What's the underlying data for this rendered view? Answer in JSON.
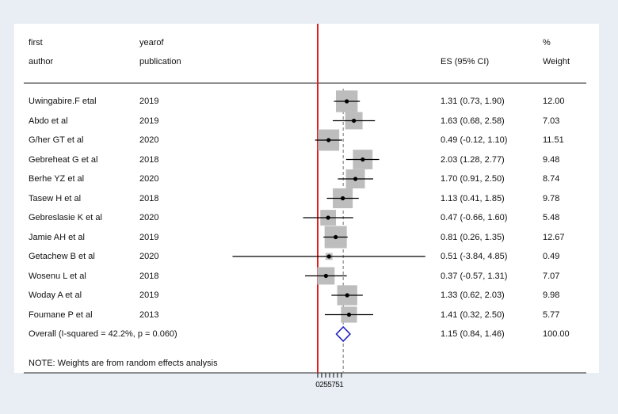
{
  "headers": {
    "author_line1": "first",
    "author_line2": "author",
    "year_line1": "yearof",
    "year_line2": "publication",
    "es": "ES (95% CI)",
    "weight_line1": "%",
    "weight_line2": "Weight"
  },
  "note": "NOTE: Weights are from random effects analysis",
  "colors": {
    "null_line": "#e41a1c",
    "diamond": "#1f1fbf",
    "box": "#bdbdbd",
    "dash": "#888888"
  },
  "chart_data": {
    "type": "forest",
    "title": "",
    "xlabel": "",
    "x_ticks": [
      "0",
      "2",
      "5",
      "5",
      "7",
      "5",
      "1"
    ],
    "studies": [
      {
        "author": "Uwingabire.F etal",
        "year": "2019",
        "es": 1.31,
        "lo": 0.73,
        "hi": 1.9,
        "es_text": "1.31 (0.73, 1.90)",
        "weight": 12.0,
        "weight_text": "12.00"
      },
      {
        "author": "Abdo et al",
        "year": "2019",
        "es": 1.63,
        "lo": 0.68,
        "hi": 2.58,
        "es_text": "1.63 (0.68, 2.58)",
        "weight": 7.03,
        "weight_text": "7.03"
      },
      {
        "author": "G/her GT et al",
        "year": "2020",
        "es": 0.49,
        "lo": -0.12,
        "hi": 1.1,
        "es_text": "0.49 (-0.12, 1.10)",
        "weight": 11.51,
        "weight_text": "11.51"
      },
      {
        "author": "Gebreheat G et al",
        "year": "2018",
        "es": 2.03,
        "lo": 1.28,
        "hi": 2.77,
        "es_text": "2.03 (1.28, 2.77)",
        "weight": 9.48,
        "weight_text": "9.48"
      },
      {
        "author": "Berhe YZ et al",
        "year": "2020",
        "es": 1.7,
        "lo": 0.91,
        "hi": 2.5,
        "es_text": "1.70 (0.91, 2.50)",
        "weight": 8.74,
        "weight_text": "8.74"
      },
      {
        "author": "Tasew H et al",
        "year": "2018",
        "es": 1.13,
        "lo": 0.41,
        "hi": 1.85,
        "es_text": "1.13 (0.41, 1.85)",
        "weight": 9.78,
        "weight_text": "9.78"
      },
      {
        "author": "Gebreslasie K et al",
        "year": "2020",
        "es": 0.47,
        "lo": -0.66,
        "hi": 1.6,
        "es_text": "0.47 (-0.66, 1.60)",
        "weight": 5.48,
        "weight_text": "5.48"
      },
      {
        "author": "Jamie AH et al",
        "year": "2019",
        "es": 0.81,
        "lo": 0.26,
        "hi": 1.35,
        "es_text": "0.81 (0.26, 1.35)",
        "weight": 12.67,
        "weight_text": "12.67"
      },
      {
        "author": "Getachew B et al",
        "year": "2020",
        "es": 0.51,
        "lo": -3.84,
        "hi": 4.85,
        "es_text": "0.51 (-3.84, 4.85)",
        "weight": 0.49,
        "weight_text": "0.49"
      },
      {
        "author": "Wosenu L et al",
        "year": "2018",
        "es": 0.37,
        "lo": -0.57,
        "hi": 1.31,
        "es_text": "0.37 (-0.57, 1.31)",
        "weight": 7.07,
        "weight_text": "7.07"
      },
      {
        "author": "Woday A et al",
        "year": "2019",
        "es": 1.33,
        "lo": 0.62,
        "hi": 2.03,
        "es_text": "1.33 (0.62, 2.03)",
        "weight": 9.98,
        "weight_text": "9.98"
      },
      {
        "author": "Foumane P et al",
        "year": "2013",
        "es": 1.41,
        "lo": 0.32,
        "hi": 2.5,
        "es_text": "1.41 (0.32, 2.50)",
        "weight": 5.77,
        "weight_text": "5.77"
      }
    ],
    "overall": {
      "label": "Overall  (I-squared = 42.2%, p = 0.060)",
      "es": 1.15,
      "lo": 0.84,
      "hi": 1.46,
      "es_text": "1.15 (0.84, 1.46)",
      "weight_text": "100.00"
    },
    "null_value": 0,
    "grid": false
  }
}
